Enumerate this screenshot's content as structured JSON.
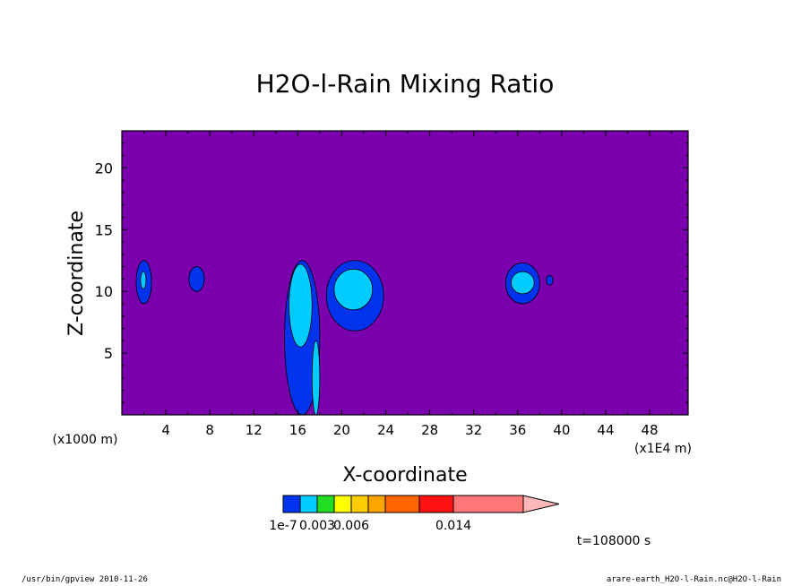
{
  "chart_data": {
    "type": "heatmap",
    "title": "H2O-l-Rain Mixing Ratio",
    "xlabel": "X-coordinate",
    "ylabel": "Z-coordinate",
    "x_units_left": "(x1000 m)",
    "x_units_right": "(x1E4 m)",
    "xlim": [
      0,
      51.5
    ],
    "ylim": [
      0,
      23
    ],
    "x_ticks": [
      4,
      8,
      12,
      16,
      20,
      24,
      28,
      32,
      36,
      40,
      44,
      48
    ],
    "y_ticks": [
      5,
      10,
      15,
      20
    ],
    "background_color": "#7a00ae",
    "cells": [
      {
        "x": [
          1.3,
          2.7
        ],
        "z": [
          9.0,
          12.5
        ],
        "level": 0
      },
      {
        "x": [
          1.7,
          2.2
        ],
        "z": [
          10.2,
          11.6
        ],
        "level": 1
      },
      {
        "x": [
          6.1,
          7.5
        ],
        "z": [
          10.0,
          12.0
        ],
        "level": 0
      },
      {
        "x": [
          14.8,
          18.0
        ],
        "z": [
          0.0,
          12.5
        ],
        "level": 0
      },
      {
        "x": [
          15.2,
          17.3
        ],
        "z": [
          5.5,
          12.2
        ],
        "level": 1
      },
      {
        "x": [
          17.3,
          18.0
        ],
        "z": [
          0.0,
          6.0
        ],
        "level": 1
      },
      {
        "x": [
          18.6,
          23.8
        ],
        "z": [
          6.8,
          12.5
        ],
        "level": 0
      },
      {
        "x": [
          19.3,
          22.8
        ],
        "z": [
          8.5,
          11.8
        ],
        "level": 1
      },
      {
        "x": [
          34.9,
          38.0
        ],
        "z": [
          9.0,
          12.3
        ],
        "level": 0
      },
      {
        "x": [
          35.4,
          37.5
        ],
        "z": [
          9.8,
          11.6
        ],
        "level": 1
      },
      {
        "x": [
          38.6,
          39.2
        ],
        "z": [
          10.5,
          11.3
        ],
        "level": 0
      }
    ],
    "colorbar": {
      "colors": [
        "#0033ee",
        "#00ccff",
        "#22dd22",
        "#ffff00",
        "#ffcc00",
        "#ffa500",
        "#ff6600",
        "#ff1111",
        "#ff7777"
      ],
      "extend_color": "#ffb8b8",
      "labels": [
        {
          "text": "1e-7",
          "boundary": 0
        },
        {
          "text": "0.003",
          "boundary": 2
        },
        {
          "text": "0.006",
          "boundary": 4
        },
        {
          "text": "0.014",
          "boundary": 8
        }
      ]
    },
    "time_label": "t=108000 s"
  },
  "footer": {
    "left": "/usr/bin/gpview  2010-11-26",
    "right": "arare-earth_H2O-l-Rain.nc@H2O-l-Rain"
  }
}
